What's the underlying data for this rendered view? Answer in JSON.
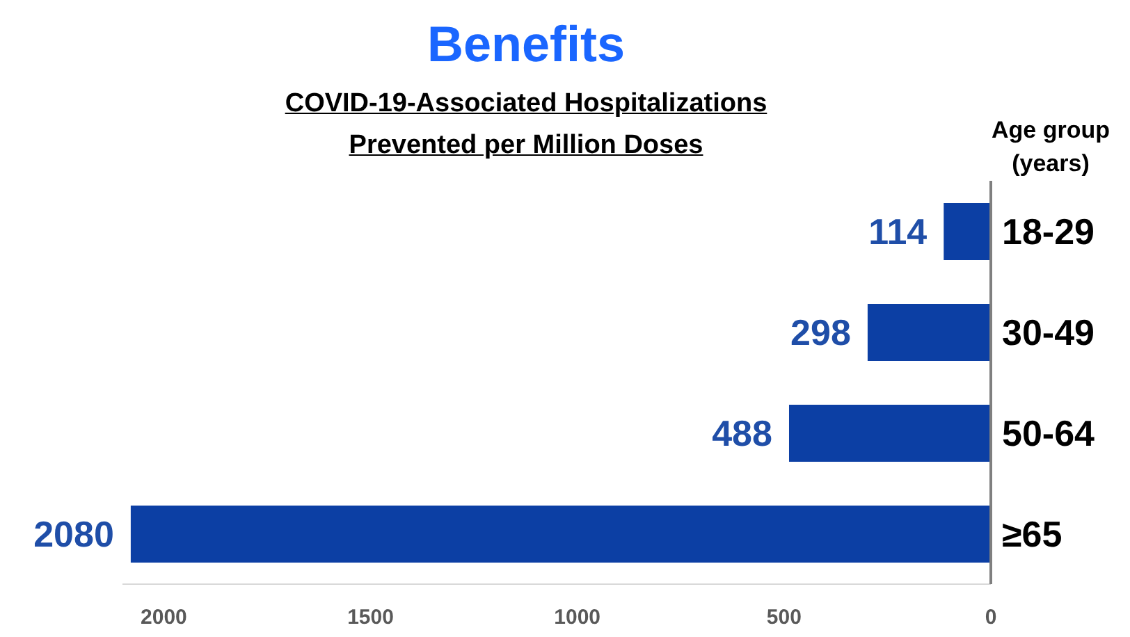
{
  "chart_data": {
    "type": "bar",
    "orientation": "horizontal",
    "title": "Benefits",
    "subtitle": "COVID-19-Associated Hospitalizations\nPrevented per Million Doses",
    "ylabel": "Age group\n(years)",
    "categories": [
      "18-29",
      "30-49",
      "50-64",
      "≥65"
    ],
    "values": [
      114,
      298,
      488,
      2080
    ],
    "color": "#0c3fa4",
    "data_labels": true,
    "xlim": [
      2100,
      0
    ],
    "xticks": [
      2000,
      1500,
      1000,
      500,
      0
    ],
    "grid": false,
    "legend": false
  }
}
